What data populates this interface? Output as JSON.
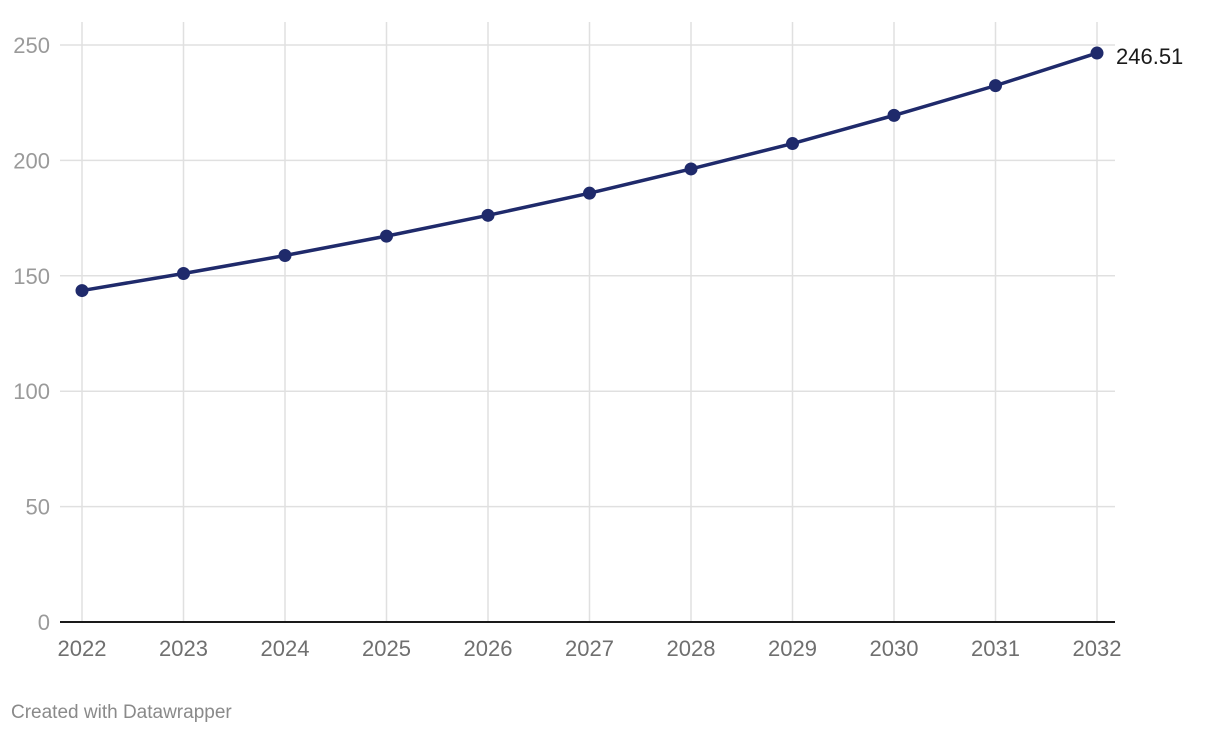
{
  "chart_data": {
    "type": "line",
    "x": [
      2022,
      2023,
      2024,
      2025,
      2026,
      2027,
      2028,
      2029,
      2030,
      2031,
      2032
    ],
    "series": [
      {
        "values": [
          143.6,
          151.0,
          158.8,
          167.2,
          176.2,
          185.8,
          196.3,
          207.3,
          219.5,
          232.4,
          246.51
        ],
        "color": "#1f2a6b"
      }
    ],
    "ylim": [
      0,
      250
    ],
    "y_ticks": [
      0,
      50,
      100,
      150,
      200,
      250
    ],
    "x_ticks": [
      "2022",
      "2023",
      "2024",
      "2025",
      "2026",
      "2027",
      "2028",
      "2029",
      "2030",
      "2031",
      "2032"
    ],
    "end_label": "246.51",
    "grid": true,
    "legend": "none"
  },
  "footer": {
    "credit": "Created with Datawrapper"
  }
}
